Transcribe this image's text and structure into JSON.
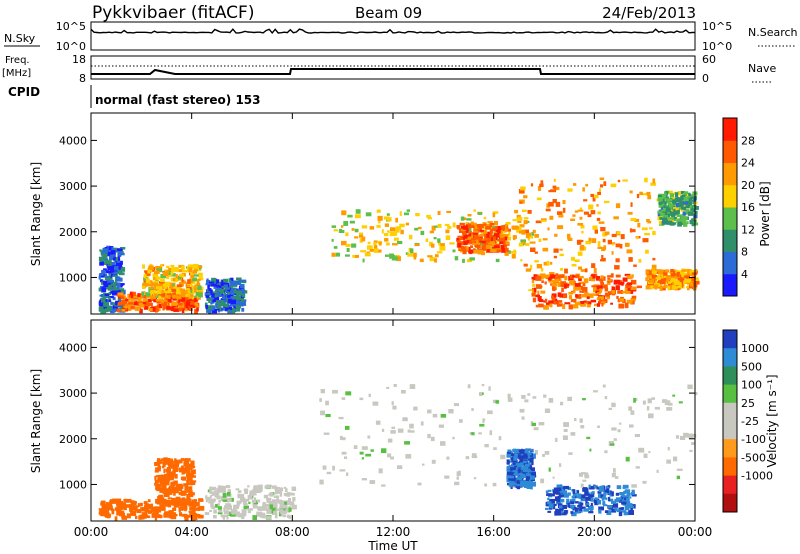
{
  "header": {
    "station": "Pykkvibaer (fitACF)",
    "beam": "Beam 09",
    "date": "24/Feb/2013"
  },
  "strip_nsky": {
    "left_label": "N.Sky",
    "left_ticks": [
      "10^5",
      "10^0"
    ],
    "right_ticks": [
      "10^5",
      "10^0"
    ],
    "right_label": "N.Search"
  },
  "strip_freq": {
    "left_label_1": "Freq.",
    "left_label_2": "[MHz]",
    "left_ticks": [
      "18",
      "8"
    ],
    "right_ticks": [
      "60",
      "0"
    ],
    "right_label": "Nave"
  },
  "cpid": {
    "label": "CPID",
    "mode": "normal (fast stereo) 153"
  },
  "colors": {
    "power_scale": [
      "#1a1aff",
      "#2b6cd6",
      "#2f8f6a",
      "#5cbf4a",
      "#ffd000",
      "#ff9a00",
      "#ff5a00",
      "#ff1a00"
    ],
    "velocity_scale": [
      "#1f3fbf",
      "#2e8bd6",
      "#2f8f5a",
      "#58c040",
      "#c8c8c0",
      "#c8c8c0",
      "#ff9a1a",
      "#ff6a00",
      "#e82020",
      "#b01010"
    ],
    "ground_scatter": "#c8c8c0"
  },
  "chart_data": [
    {
      "type": "heatmap",
      "panel": "power",
      "ylabel": "Slant Range [km]",
      "yticks": [
        "1000",
        "2000",
        "3000",
        "4000"
      ],
      "ylim": [
        200,
        4600
      ],
      "xlim": [
        0,
        24
      ],
      "colorbar_label": "Power [dB]",
      "colorbar_ticks": [
        "4",
        "8",
        "12",
        "16",
        "20",
        "24",
        "28"
      ],
      "colorbar_range": [
        0,
        32
      ],
      "echo_regions": [
        {
          "t0": 0.3,
          "t1": 1.2,
          "r0": 300,
          "r1": 1700,
          "power": 6
        },
        {
          "t0": 1.0,
          "t1": 4.2,
          "r0": 300,
          "r1": 700,
          "power": 26
        },
        {
          "t0": 2.0,
          "t1": 4.3,
          "r0": 600,
          "r1": 1300,
          "power": 20
        },
        {
          "t0": 4.5,
          "t1": 6.0,
          "r0": 300,
          "r1": 1000,
          "power": 6
        },
        {
          "t0": 9.5,
          "t1": 17.5,
          "r0": 1400,
          "r1": 2500,
          "power": 18
        },
        {
          "t0": 14.5,
          "t1": 16.5,
          "r0": 1600,
          "r1": 2200,
          "power": 26
        },
        {
          "t0": 17.0,
          "t1": 22.5,
          "r0": 700,
          "r1": 3200,
          "power": 22
        },
        {
          "t0": 17.5,
          "t1": 21.5,
          "r0": 400,
          "r1": 1100,
          "power": 26
        },
        {
          "t0": 22.0,
          "t1": 24.0,
          "r0": 800,
          "r1": 1200,
          "power": 22
        },
        {
          "t0": 22.5,
          "t1": 24.0,
          "r0": 2200,
          "r1": 2900,
          "power": 12
        }
      ]
    },
    {
      "type": "heatmap",
      "panel": "velocity",
      "ylabel": "Slant Range [km]",
      "yticks": [
        "1000",
        "2000",
        "3000",
        "4000"
      ],
      "ylim": [
        200,
        4600
      ],
      "xlim": [
        0,
        24
      ],
      "xlabel": "Time UT",
      "xticks": [
        "00:00",
        "04:00",
        "08:00",
        "12:00",
        "16:00",
        "20:00",
        "00:00"
      ],
      "colorbar_label": "Velocity [m s⁻¹]",
      "colorbar_ticks": [
        "1000",
        "500",
        "100",
        "25",
        "-25",
        "-100",
        "-500",
        "-1000"
      ],
      "echo_regions": [
        {
          "t0": 0.3,
          "t1": 4.3,
          "r0": 300,
          "r1": 700,
          "velocity": -200
        },
        {
          "t0": 2.5,
          "t1": 4.0,
          "r0": 600,
          "r1": 1600,
          "velocity": -150
        },
        {
          "t0": 4.5,
          "t1": 8.0,
          "r0": 300,
          "r1": 1000,
          "velocity": 0
        },
        {
          "t0": 9.0,
          "t1": 24.0,
          "r0": 1000,
          "r1": 3200,
          "velocity": 0
        },
        {
          "t0": 16.5,
          "t1": 17.5,
          "r0": 1000,
          "r1": 1800,
          "velocity": 600
        },
        {
          "t0": 18.0,
          "t1": 21.5,
          "r0": 400,
          "r1": 1000,
          "velocity": 700
        }
      ]
    }
  ]
}
